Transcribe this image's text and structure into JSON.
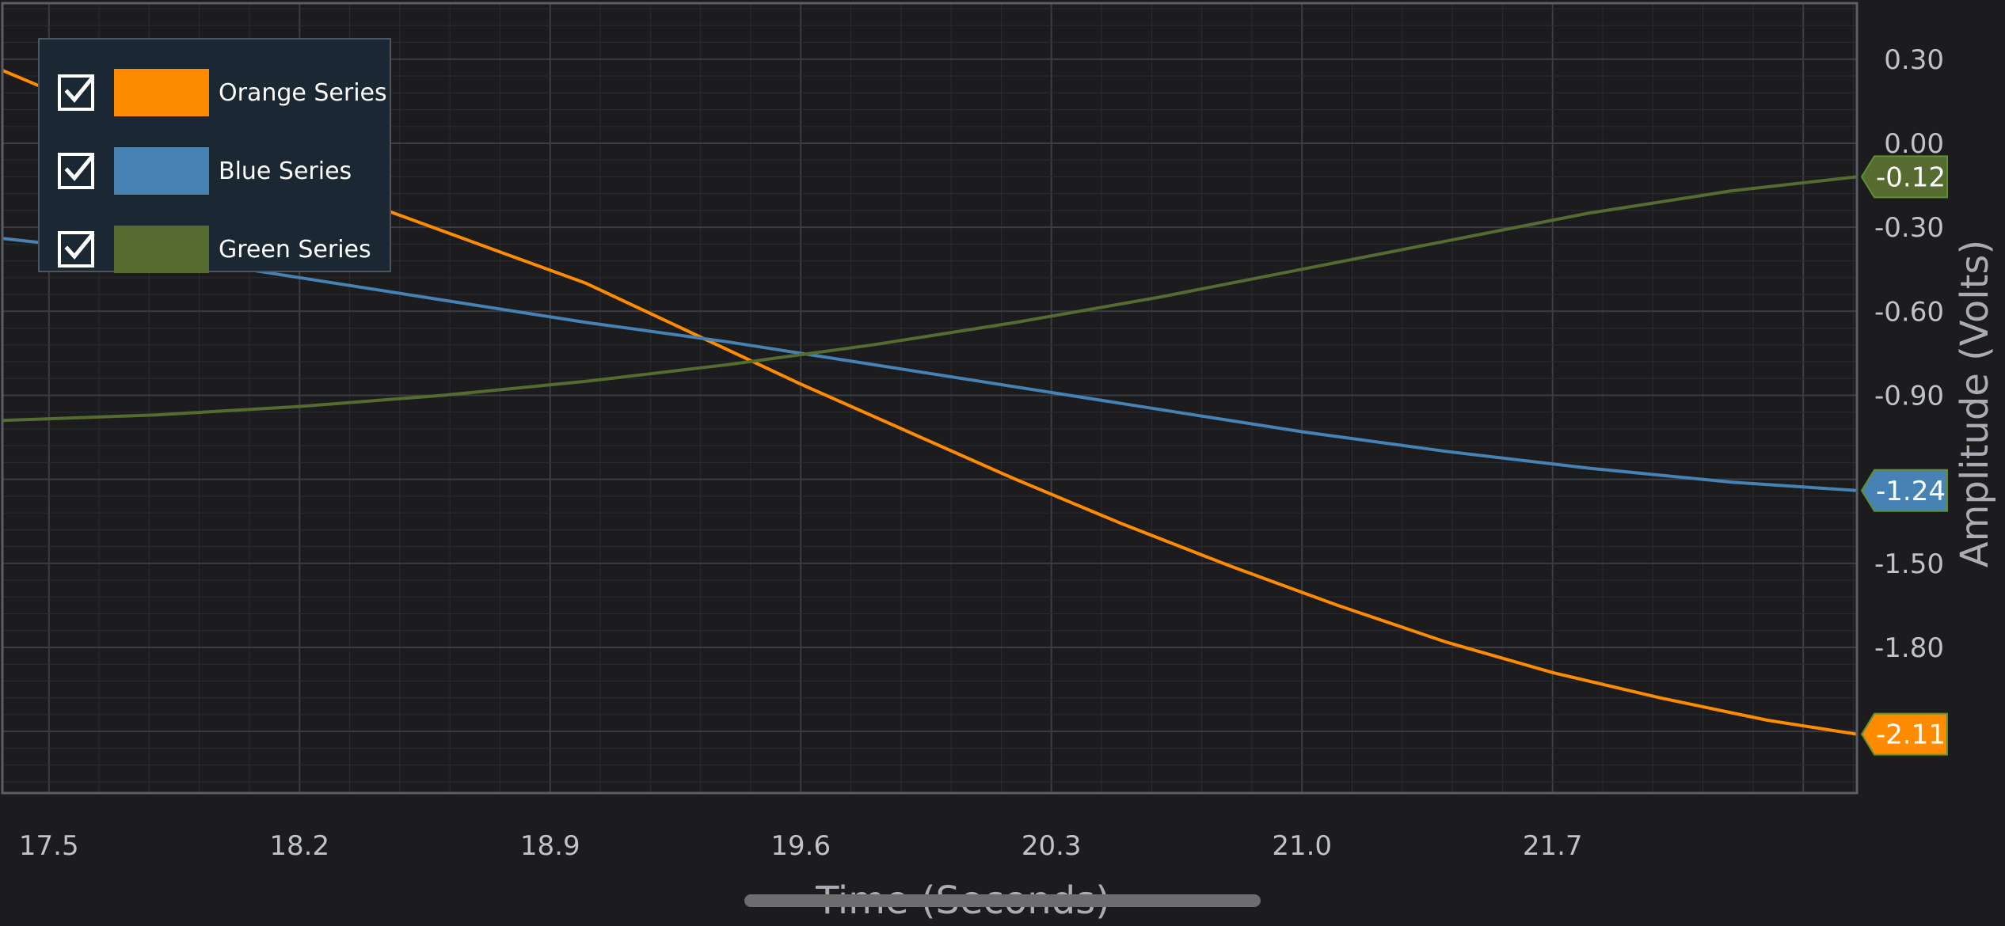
{
  "chart_data": {
    "type": "line",
    "xlabel": "Time (Seconds)",
    "ylabel": "Amplitude (Volts)",
    "xlim": [
      17.37,
      22.55
    ],
    "ylim": [
      -2.32,
      0.5
    ],
    "x_ticks": [
      "17.5",
      "18.2",
      "18.9",
      "19.6",
      "20.3",
      "21.0",
      "21.7"
    ],
    "y_ticks": [
      "0.30",
      "0.00",
      "-0.30",
      "-0.60",
      "-0.90",
      "-1.50",
      "-1.80"
    ],
    "grid": true,
    "legend_position": "top-left",
    "series": [
      {
        "name": "Orange Series",
        "color": "#ff8c00",
        "x": [
          17.37,
          17.5,
          17.8,
          18.1,
          18.4,
          18.7,
          19.0,
          19.3,
          19.6,
          19.9,
          20.2,
          20.5,
          20.8,
          21.1,
          21.4,
          21.7,
          22.0,
          22.3,
          22.55
        ],
        "y": [
          0.26,
          0.19,
          0.05,
          -0.09,
          -0.22,
          -0.36,
          -0.5,
          -0.68,
          -0.86,
          -1.03,
          -1.2,
          -1.36,
          -1.51,
          -1.65,
          -1.78,
          -1.89,
          -1.98,
          -2.06,
          -2.11
        ],
        "last_value_label": "-2.11"
      },
      {
        "name": "Blue Series",
        "color": "#4682b4",
        "x": [
          17.37,
          17.8,
          18.2,
          18.6,
          19.0,
          19.4,
          19.8,
          20.2,
          20.6,
          21.0,
          21.4,
          21.8,
          22.2,
          22.55
        ],
        "y": [
          -0.34,
          -0.4,
          -0.48,
          -0.56,
          -0.64,
          -0.71,
          -0.79,
          -0.87,
          -0.95,
          -1.03,
          -1.1,
          -1.16,
          -1.21,
          -1.24
        ],
        "last_value_label": "-1.24"
      },
      {
        "name": "Green Series",
        "color": "#556b2f",
        "x": [
          17.37,
          17.8,
          18.2,
          18.6,
          19.0,
          19.4,
          19.8,
          20.2,
          20.6,
          21.0,
          21.4,
          21.8,
          22.2,
          22.55
        ],
        "y": [
          -0.99,
          -0.97,
          -0.94,
          -0.9,
          -0.85,
          -0.79,
          -0.72,
          -0.64,
          -0.55,
          -0.45,
          -0.35,
          -0.25,
          -0.17,
          -0.12
        ],
        "last_value_label": "-0.12"
      }
    ]
  },
  "legend": {
    "items": [
      {
        "label": "Orange Series",
        "color": "#ff8c00",
        "checked": true
      },
      {
        "label": "Blue Series",
        "color": "#4682b4",
        "checked": true
      },
      {
        "label": "Green Series",
        "color": "#556b2f",
        "checked": true
      }
    ]
  },
  "theme": {
    "background": "#1c1c1e",
    "plot_border": "#5a5e66",
    "grid_major": "#3a3d42",
    "grid_minor": "#2a2c30"
  }
}
